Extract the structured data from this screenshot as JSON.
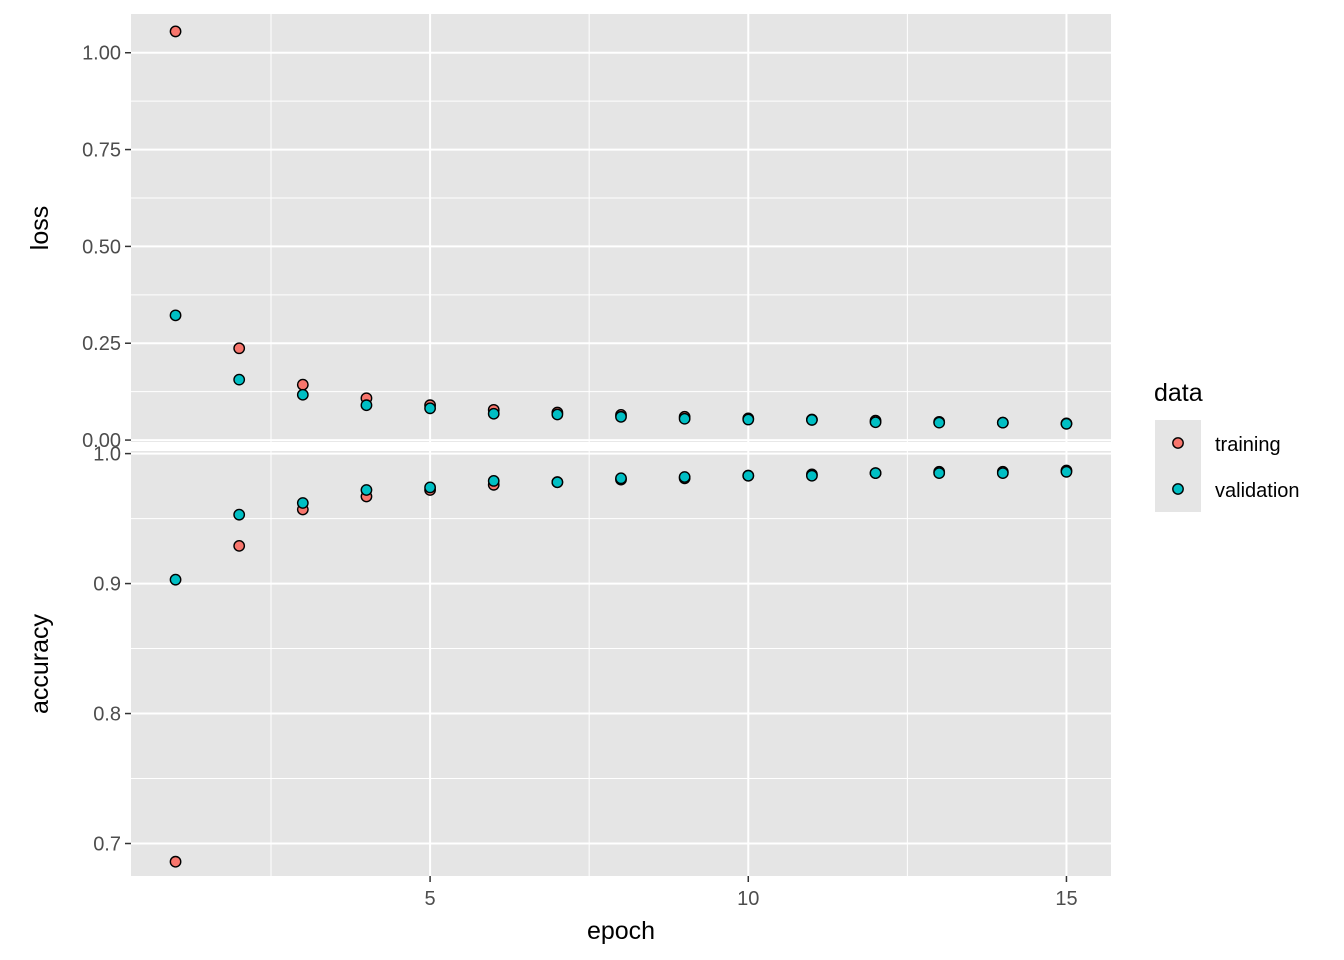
{
  "chart_data": {
    "type": "scatter",
    "xlabel": "epoch",
    "x_ticks": [
      5,
      10,
      15
    ],
    "x_minor_ticks": [
      2.5,
      7.5,
      12.5
    ],
    "xlim": [
      0.3,
      15.7
    ],
    "legend": {
      "title": "data",
      "position": "right",
      "entries": [
        "training",
        "validation"
      ]
    },
    "colors": {
      "training": "#F8766D",
      "validation": "#00BFC4",
      "panel_bg": "#E5E5E5",
      "grid": "#FFFFFF"
    },
    "grid": true,
    "panels": [
      {
        "ylabel": "loss",
        "ylim": [
          -0.005,
          1.1
        ],
        "y_ticks": [
          0.0,
          0.25,
          0.5,
          0.75,
          1.0
        ],
        "y_tick_labels": [
          "0.00",
          "0.25",
          "0.50",
          "0.75",
          "1.00"
        ],
        "y_minor_ticks": [
          0.125,
          0.375,
          0.625,
          0.875
        ],
        "series": [
          {
            "name": "training",
            "x": [
              1,
              2,
              3,
              4,
              5,
              6,
              7,
              8,
              9,
              10,
              11,
              12,
              13,
              14,
              15
            ],
            "values": [
              1.055,
              0.237,
              0.143,
              0.108,
              0.09,
              0.078,
              0.071,
              0.065,
              0.06,
              0.056,
              0.053,
              0.05,
              0.047,
              0.045,
              0.043
            ]
          },
          {
            "name": "validation",
            "x": [
              1,
              2,
              3,
              4,
              5,
              6,
              7,
              8,
              9,
              10,
              11,
              12,
              13,
              14,
              15
            ],
            "values": [
              0.322,
              0.156,
              0.117,
              0.09,
              0.082,
              0.068,
              0.066,
              0.06,
              0.055,
              0.053,
              0.052,
              0.046,
              0.045,
              0.045,
              0.042
            ]
          }
        ]
      },
      {
        "ylabel": "accuracy",
        "ylim": [
          0.675,
          1.002
        ],
        "y_ticks": [
          0.7,
          0.8,
          0.9,
          1.0
        ],
        "y_tick_labels": [
          "0.7",
          "0.8",
          "0.9",
          "1.0"
        ],
        "y_minor_ticks": [
          0.75,
          0.85,
          0.95
        ],
        "series": [
          {
            "name": "training",
            "x": [
              1,
              2,
              3,
              4,
              5,
              6,
              7,
              8,
              9,
              10,
              11,
              12,
              13,
              14,
              15
            ],
            "values": [
              0.686,
              0.929,
              0.957,
              0.967,
              0.972,
              0.976,
              0.978,
              0.98,
              0.981,
              0.983,
              0.984,
              0.985,
              0.986,
              0.986,
              0.987
            ]
          },
          {
            "name": "validation",
            "x": [
              1,
              2,
              3,
              4,
              5,
              6,
              7,
              8,
              9,
              10,
              11,
              12,
              13,
              14,
              15
            ],
            "values": [
              0.903,
              0.953,
              0.962,
              0.972,
              0.974,
              0.979,
              0.978,
              0.981,
              0.982,
              0.983,
              0.983,
              0.985,
              0.985,
              0.985,
              0.986
            ]
          }
        ]
      }
    ]
  }
}
